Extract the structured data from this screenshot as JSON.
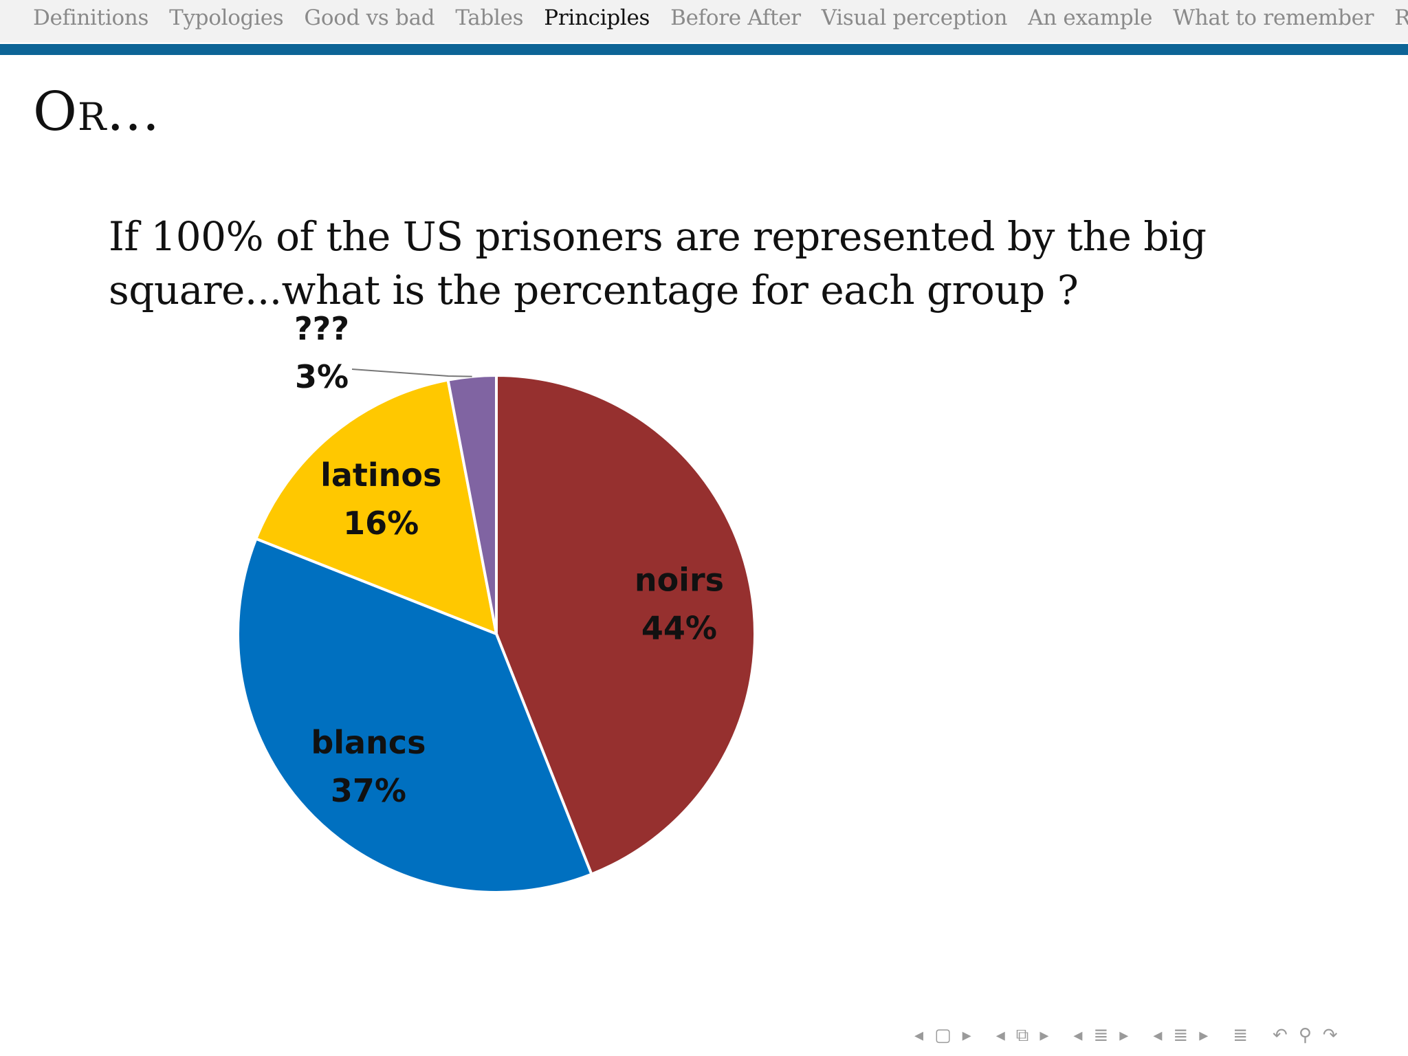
{
  "nav": {
    "items": [
      {
        "label": "Definitions",
        "active": false
      },
      {
        "label": "Typologies",
        "active": false
      },
      {
        "label": "Good vs bad",
        "active": false
      },
      {
        "label": "Tables",
        "active": false
      },
      {
        "label": "Principles",
        "active": true
      },
      {
        "label": "Before After",
        "active": false
      },
      {
        "label": "Visual perception",
        "active": false
      },
      {
        "label": "An example",
        "active": false
      },
      {
        "label": "What to remember",
        "active": false
      },
      {
        "label": "Réfé",
        "active": false
      }
    ],
    "bar_color": "#0d6496"
  },
  "slide": {
    "title": "Or...",
    "question_line1": "If 100% of the US prisoners are represented by the big",
    "question_line2": "square...what is the percentage for each group ?"
  },
  "chart_data": {
    "type": "pie",
    "title": "",
    "start_angle_deg": 0,
    "direction": "clockwise",
    "slices": [
      {
        "name": "noirs",
        "label": "44%",
        "value": 44,
        "color": "#96302f"
      },
      {
        "name": "blancs",
        "label": "37%",
        "value": 37,
        "color": "#0070c0"
      },
      {
        "name": "latinos",
        "label": "16%",
        "value": 16,
        "color": "#ffc800"
      },
      {
        "name": "???",
        "label": "3%",
        "value": 3,
        "color": "#8064a2"
      }
    ]
  },
  "footer_nav": {
    "icons": [
      "prev-arrow-icon",
      "frame-icon",
      "next-arrow-icon",
      "prev-arrow-icon",
      "subsection-icon",
      "next-arrow-icon",
      "prev-arrow-icon",
      "section-icon",
      "next-arrow-icon",
      "prev-arrow-icon",
      "list-icon",
      "next-arrow-icon",
      "outline-icon",
      "back-icon",
      "search-icon",
      "forward-icon"
    ],
    "color": "#9a9a9a"
  }
}
